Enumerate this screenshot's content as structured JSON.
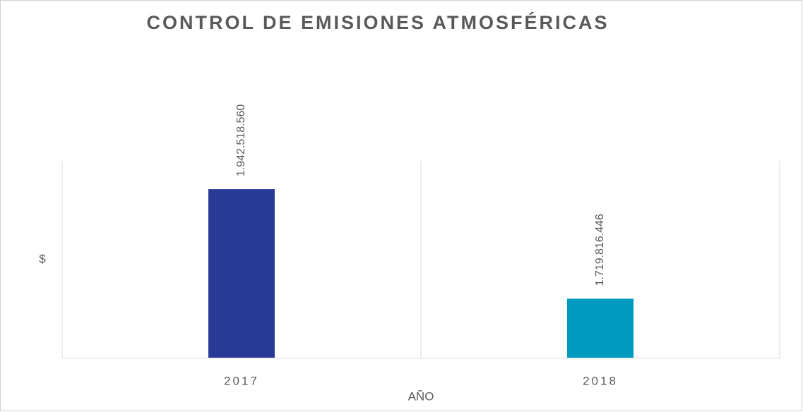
{
  "chart_data": {
    "type": "bar",
    "title": "CONTROL DE EMISIONES ATMOSFÉRICAS",
    "x_label": "AÑO",
    "y_label": "$",
    "categories": [
      "2017",
      "2018"
    ],
    "values": [
      1942518560,
      1719816446
    ],
    "value_labels": [
      "1.942.518.560",
      "1.719.816.446"
    ],
    "colors": [
      "#283a96",
      "#0099c0"
    ],
    "ylim": [
      1600000000,
      2000000000
    ]
  }
}
